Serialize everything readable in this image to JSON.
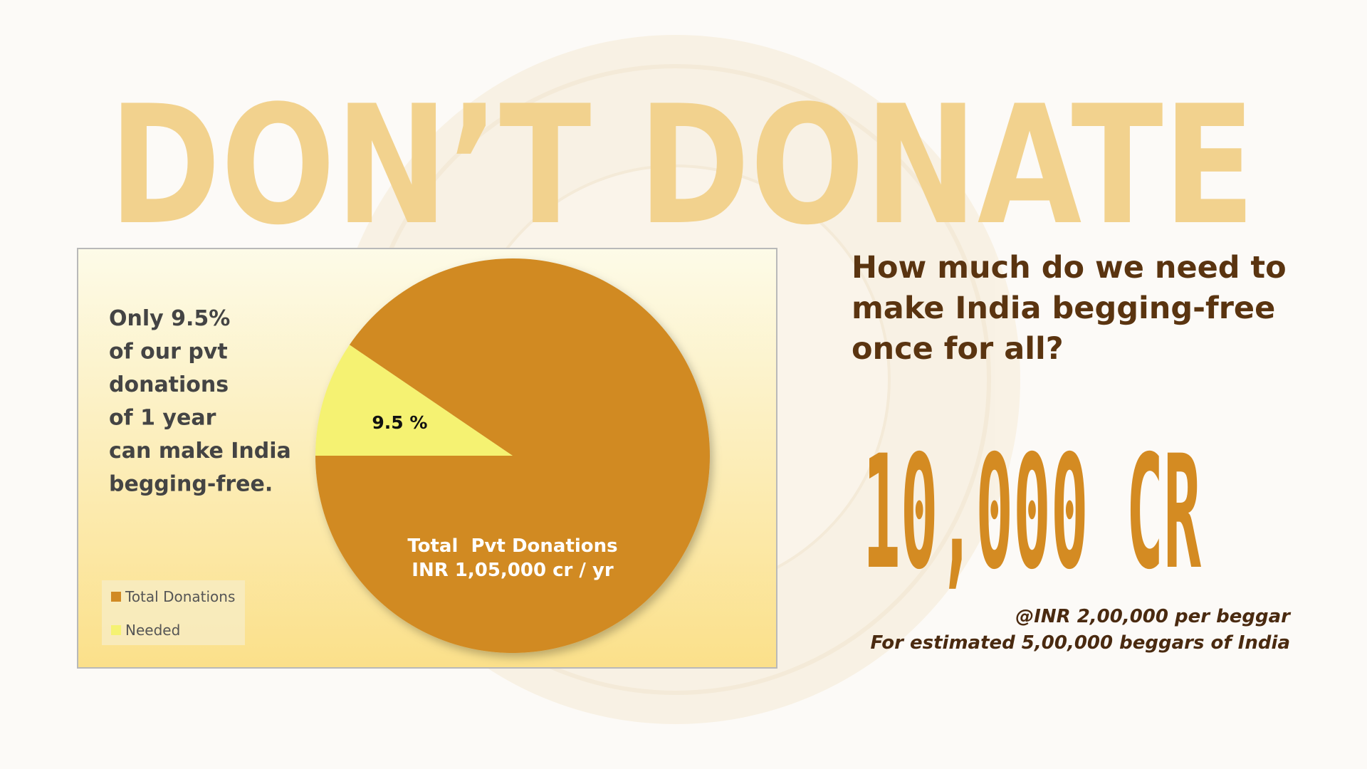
{
  "poster": {
    "headline": "DON’T DONATE",
    "question": [
      "How much do we need to",
      "make India begging-free",
      "once for all?"
    ],
    "amount": "10,000 CR",
    "footnotes": [
      "@INR 2,00,000 per beggar",
      "For estimated 5,00,000 beggars of India"
    ]
  },
  "chart_data": {
    "type": "pie",
    "note": [
      "Only 9.5%",
      "of our pvt",
      "donations",
      "of 1 year",
      "can make India",
      "begging-free."
    ],
    "categories": [
      "Total Donations",
      "Needed"
    ],
    "values": [
      90.5,
      9.5
    ],
    "value_labels": [
      null,
      "9.5 %"
    ],
    "colors": [
      "#d18a24",
      "#f5f272"
    ],
    "annotations": [
      "Total  Pvt Donations",
      "INR 1,05,000 cr / yr"
    ],
    "legend": "bottom-left"
  }
}
